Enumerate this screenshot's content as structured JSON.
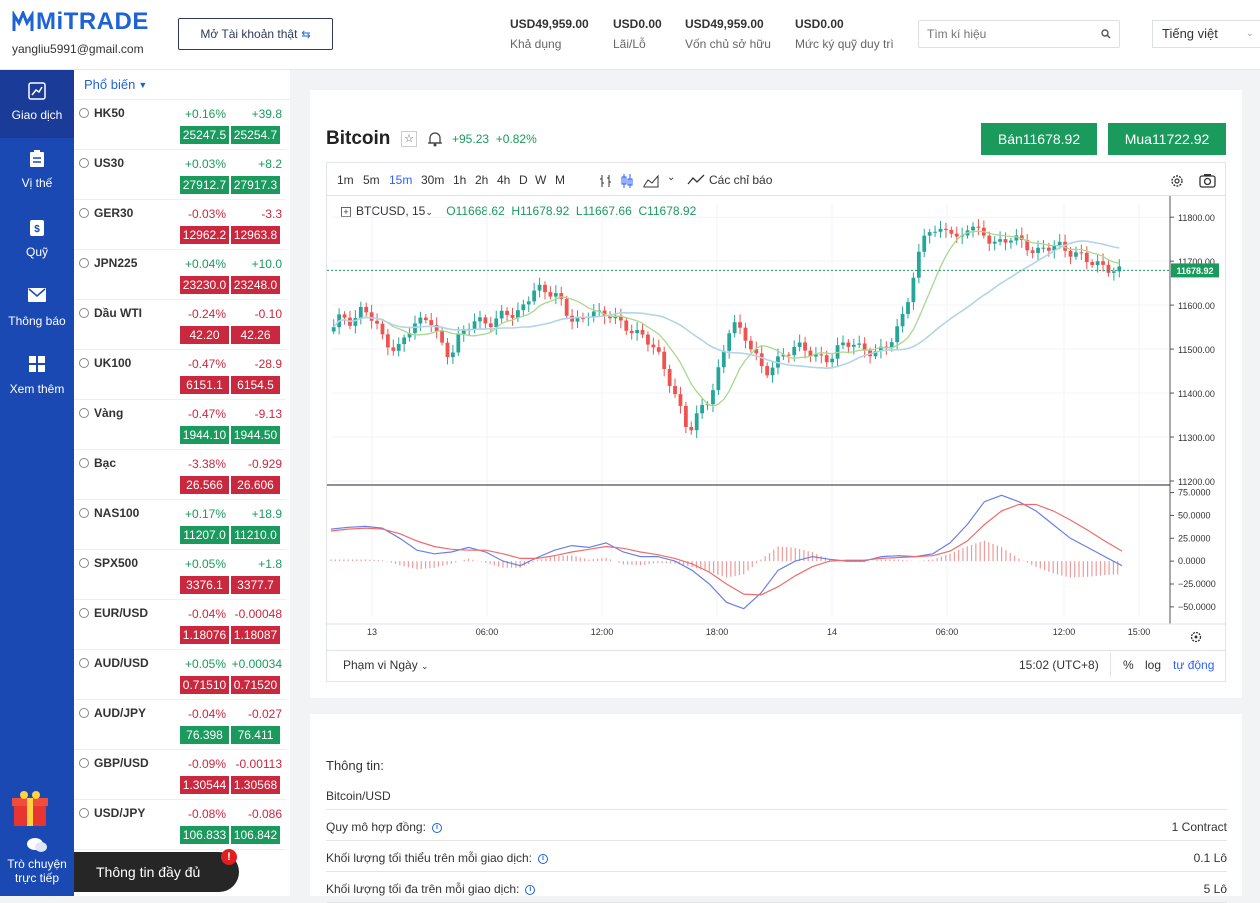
{
  "header": {
    "logo_text": "MiTRADE",
    "email": "yangliu5991@gmail.com",
    "open_account": "Mở Tài khoản thật",
    "stats": [
      {
        "value": "USD49,959.00",
        "label": "Khả dụng"
      },
      {
        "value": "USD0.00",
        "label": "Lãi/Lỗ"
      },
      {
        "value": "USD49,959.00",
        "label": "Vốn chủ sở hữu"
      },
      {
        "value": "USD0.00",
        "label": "Mức ký quỹ duy trì"
      }
    ],
    "search_placeholder": "Tìm kí hiệu",
    "language": "Tiếng việt"
  },
  "nav": {
    "items": [
      {
        "label": "Giao dịch",
        "icon": "chart-line-icon",
        "active": true
      },
      {
        "label": "Vị thế",
        "icon": "clipboard-icon"
      },
      {
        "label": "Quỹ",
        "icon": "fund-icon"
      },
      {
        "label": "Thông báo",
        "icon": "mail-icon"
      },
      {
        "label": "Xem thêm",
        "icon": "grid-icon"
      }
    ],
    "chat_label_1": "Trò chuyện",
    "chat_label_2": "trực tiếp"
  },
  "watchlist": {
    "header": "Phổ biến",
    "items": [
      {
        "symbol": "HK50",
        "pct": "+0.16%",
        "change": "+39.8",
        "bid": "25247.5",
        "ask": "25254.7",
        "dir": "up"
      },
      {
        "symbol": "US30",
        "pct": "+0.03%",
        "change": "+8.2",
        "bid": "27912.7",
        "ask": "27917.3",
        "dir": "up"
      },
      {
        "symbol": "GER30",
        "pct": "-0.03%",
        "change": "-3.3",
        "bid": "12962.2",
        "ask": "12963.8",
        "dir": "dn"
      },
      {
        "symbol": "JPN225",
        "pct": "+0.04%",
        "change": "+10.0",
        "bid": "23230.0",
        "ask": "23248.0",
        "dir": "up",
        "pdir": "dn"
      },
      {
        "symbol": "Dầu WTI",
        "pct": "-0.24%",
        "change": "-0.10",
        "bid": "42.20",
        "ask": "42.26",
        "dir": "dn"
      },
      {
        "symbol": "UK100",
        "pct": "-0.47%",
        "change": "-28.9",
        "bid": "6151.1",
        "ask": "6154.5",
        "dir": "dn"
      },
      {
        "symbol": "Vàng",
        "pct": "-0.47%",
        "change": "-9.13",
        "bid": "1944.10",
        "ask": "1944.50",
        "dir": "dn",
        "pdir": "up"
      },
      {
        "symbol": "Bạc",
        "pct": "-3.38%",
        "change": "-0.929",
        "bid": "26.566",
        "ask": "26.606",
        "dir": "dn"
      },
      {
        "symbol": "NAS100",
        "pct": "+0.17%",
        "change": "+18.9",
        "bid": "11207.0",
        "ask": "11210.0",
        "dir": "up"
      },
      {
        "symbol": "SPX500",
        "pct": "+0.05%",
        "change": "+1.8",
        "bid": "3376.1",
        "ask": "3377.7",
        "dir": "up",
        "pdir": "dn"
      },
      {
        "symbol": "EUR/USD",
        "pct": "-0.04%",
        "change": "-0.00048",
        "bid": "1.18076",
        "ask": "1.18087",
        "dir": "dn"
      },
      {
        "symbol": "AUD/USD",
        "pct": "+0.05%",
        "change": "+0.00034",
        "bid": "0.71510",
        "ask": "0.71520",
        "dir": "up",
        "pdir": "dn"
      },
      {
        "symbol": "AUD/JPY",
        "pct": "-0.04%",
        "change": "-0.027",
        "bid": "76.398",
        "ask": "76.411",
        "dir": "dn",
        "pdir": "up"
      },
      {
        "symbol": "GBP/USD",
        "pct": "-0.09%",
        "change": "-0.00113",
        "bid": "1.30544",
        "ask": "1.30568",
        "dir": "dn"
      },
      {
        "symbol": "USD/JPY",
        "pct": "-0.08%",
        "change": "-0.086",
        "bid": "106.833",
        "ask": "106.842",
        "dir": "dn",
        "pdir": "up"
      }
    ],
    "full_info": "Thông tin đầy đủ",
    "badge": "!"
  },
  "instrument": {
    "name": "Bitcoin",
    "change": "+95.23",
    "change_pct": "+0.82%",
    "sell": "Bán11678.92",
    "buy": "Mua11722.92"
  },
  "chart_toolbar": {
    "timeframes": [
      "1m",
      "5m",
      "15m",
      "30m",
      "1h",
      "2h",
      "4h",
      "D",
      "W",
      "M"
    ],
    "active_tf": "15m",
    "indicators_label": "Các chỉ báo"
  },
  "chart_data": {
    "type": "candlestick",
    "symbol_label": "BTCUSD, 15",
    "ohlc": {
      "o": "O11668.62",
      "h": "H11678.92",
      "l": "L11667.66",
      "c": "C11678.92"
    },
    "last_price": "11678.92",
    "price_ticks": [
      "11800.00",
      "11700.00",
      "11600.00",
      "11500.00",
      "11400.00",
      "11300.00",
      "11200.00"
    ],
    "macd_ticks": [
      "75.0000",
      "50.0000",
      "25.0000",
      "0.0000",
      "−25.0000",
      "−50.0000"
    ],
    "time_ticks": [
      "13",
      "06:00",
      "12:00",
      "18:00",
      "14",
      "06:00",
      "12:00",
      "15:00"
    ],
    "ylim": [
      11200,
      11830
    ],
    "price_path": [
      11540,
      11580,
      11555,
      11600,
      11560,
      11520,
      11490,
      11540,
      11560,
      11575,
      11520,
      11480,
      11540,
      11560,
      11565,
      11555,
      11590,
      11570,
      11610,
      11640,
      11630,
      11620,
      11570,
      11560,
      11590,
      11575,
      11580,
      11550,
      11540,
      11525,
      11500,
      11440,
      11380,
      11310,
      11360,
      11390,
      11470,
      11570,
      11530,
      11500,
      11440,
      11470,
      11490,
      11510,
      11495,
      11480,
      11475,
      11510,
      11515,
      11500,
      11490,
      11500,
      11530,
      11590,
      11690,
      11780,
      11760,
      11780,
      11740,
      11790,
      11760,
      11745,
      11740,
      11760,
      11735,
      11720,
      11730,
      11740,
      11720,
      11715,
      11700,
      11690,
      11679
    ],
    "macd_line": [
      35,
      37,
      38,
      36,
      25,
      12,
      8,
      10,
      15,
      10,
      0,
      -5,
      4,
      12,
      17,
      15,
      20,
      10,
      5,
      5,
      0,
      -10,
      -25,
      -45,
      -52,
      -35,
      -10,
      0,
      5,
      2,
      0,
      0,
      5,
      6,
      5,
      8,
      20,
      40,
      65,
      72,
      65,
      55,
      40,
      25,
      15,
      5,
      -5
    ],
    "signal_line": [
      33,
      35,
      36,
      35,
      30,
      22,
      16,
      13,
      12,
      12,
      8,
      3,
      3,
      6,
      10,
      13,
      16,
      14,
      10,
      7,
      3,
      -3,
      -12,
      -25,
      -36,
      -37,
      -28,
      -16,
      -6,
      0,
      1,
      1,
      3,
      4,
      5,
      6,
      11,
      22,
      40,
      55,
      62,
      62,
      55,
      45,
      34,
      22,
      11
    ],
    "macd_ylim": [
      -60,
      80
    ]
  },
  "chart_footer": {
    "range": "Phạm vi Ngày",
    "time": "15:02 (UTC+8)",
    "pct": "%",
    "log": "log",
    "auto": "tự động"
  },
  "info": {
    "title": "Thông tin:",
    "subtitle": "Bitcoin/USD",
    "rows": [
      {
        "key": "Quy mô hợp đồng:",
        "value": "1 Contract"
      },
      {
        "key": "Khối lượng tối thiểu trên mỗi giao dịch:",
        "value": "0.1 Lô"
      },
      {
        "key": "Khối lượng tối đa trên mỗi giao dịch:",
        "value": "5 Lô"
      }
    ]
  },
  "colors": {
    "primary": "#1a49b3",
    "green": "#1b9a5e",
    "red": "#c9283e"
  }
}
